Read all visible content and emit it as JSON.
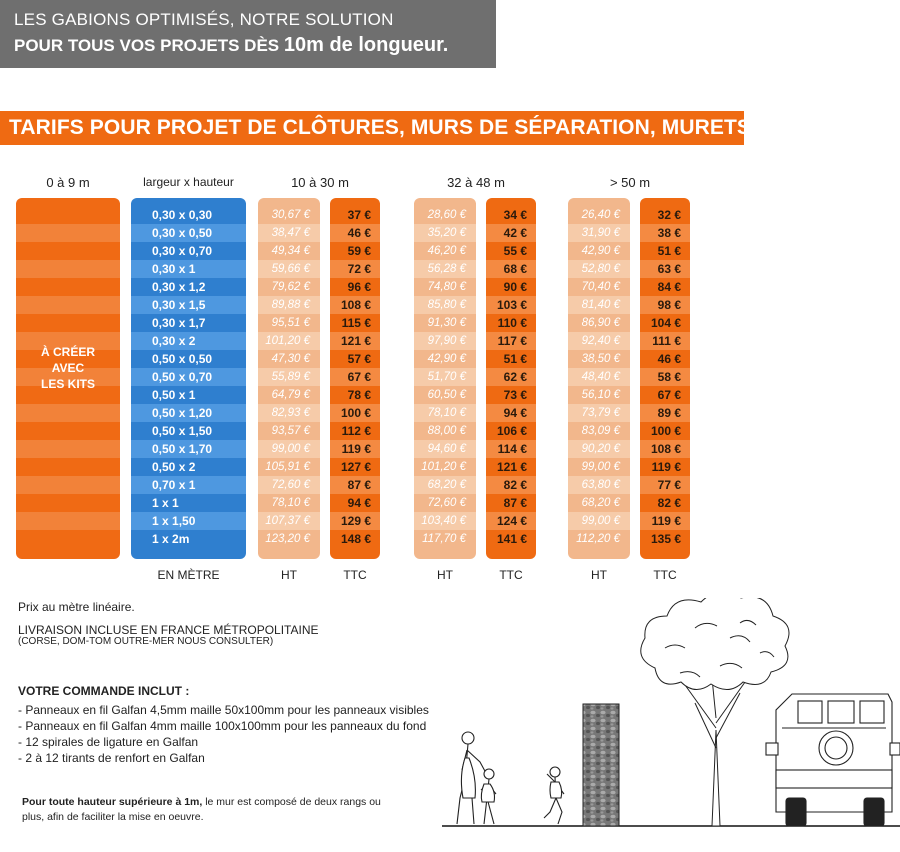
{
  "banner": {
    "line1": "LES GABIONS OPTIMISÉS, NOTRE SOLUTION",
    "line2_prefix": "POUR TOUS VOS PROJETS DÈS",
    "line2_big": "10m de longueur."
  },
  "ribbon_title": "TARIFS POUR PROJET DE CLÔTURES, MURS DE SÉPARATION, MURETS...",
  "table": {
    "header_kits": "0 à 9 m",
    "header_dims": "largeur x hauteur",
    "kits_label": [
      "À CRÉER",
      "AVEC",
      "LES KITS"
    ],
    "dims_footer": "EN MÈTRE",
    "ht_label": "HT",
    "ttc_label": "TTC",
    "dimensions": [
      "0,30 x 0,30",
      "0,30 x 0,50",
      "0,30 x 0,70",
      "0,30 x 1",
      "0,30 x 1,2",
      "0,30 x 1,5",
      "0,30 x 1,7",
      "0,30 x 2",
      "0,50 x 0,50",
      "0,50 x 0,70",
      "0,50 x 1",
      "0,50 x 1,20",
      "0,50 x 1,50",
      "0,50 x 1,70",
      "0,50 x 2",
      "0,70 x 1",
      "1 x 1",
      "1 x 1,50",
      "1 x 2m"
    ],
    "groups": [
      {
        "range": "10 à 30 m",
        "ht": [
          "30,67 €",
          "38,47 €",
          "49,34 €",
          "59,66 €",
          "79,62 €",
          "89,88 €",
          "95,51 €",
          "101,20 €",
          "47,30 €",
          "55,89 €",
          "64,79 €",
          "82,93 €",
          "93,57 €",
          "99,00 €",
          "105,91 €",
          "72,60 €",
          "78,10 €",
          "107,37 €",
          "123,20 €"
        ],
        "ttc": [
          "37 €",
          "46 €",
          "59 €",
          "72 €",
          "96 €",
          "108 €",
          "115 €",
          "121 €",
          "57 €",
          "67 €",
          "78 €",
          "100 €",
          "112 €",
          "119 €",
          "127 €",
          "87 €",
          "94 €",
          "129 €",
          "148 €"
        ]
      },
      {
        "range": "32 à 48 m",
        "ht": [
          "28,60 €",
          "35,20 €",
          "46,20 €",
          "56,28 €",
          "74,80 €",
          "85,80 €",
          "91,30 €",
          "97,90 €",
          "42,90 €",
          "51,70 €",
          "60,50 €",
          "78,10 €",
          "88,00 €",
          "94,60 €",
          "101,20 €",
          "68,20 €",
          "72,60 €",
          "103,40 €",
          "117,70 €"
        ],
        "ttc": [
          "34 €",
          "42 €",
          "55 €",
          "68 €",
          "90 €",
          "103 €",
          "110 €",
          "117 €",
          "51 €",
          "62 €",
          "73 €",
          "94 €",
          "106 €",
          "114 €",
          "121 €",
          "82 €",
          "87 €",
          "124 €",
          "141 €"
        ]
      },
      {
        "range": "> 50 m",
        "ht": [
          "26,40 €",
          "31,90 €",
          "42,90 €",
          "52,80 €",
          "70,40 €",
          "81,40 €",
          "86,90 €",
          "92,40 €",
          "38,50 €",
          "48,40 €",
          "56,10 €",
          "73,79 €",
          "83,09 €",
          "90,20 €",
          "99,00 €",
          "63,80 €",
          "68,20 €",
          "99,00 €",
          "112,20 €"
        ],
        "ttc": [
          "32 €",
          "38 €",
          "51 €",
          "63 €",
          "84 €",
          "98 €",
          "104 €",
          "111 €",
          "46 €",
          "58 €",
          "67 €",
          "89 €",
          "100 €",
          "108 €",
          "119 €",
          "77 €",
          "82 €",
          "119 €",
          "135 €"
        ]
      }
    ]
  },
  "info": {
    "price_note": "Prix au mètre linéaire.",
    "delivery": "LIVRAISON INCLUSE EN FRANCE MÉTROPOLITAINE",
    "delivery_sub": "(CORSE, DOM-TOM OUTRE-MER NOUS CONSULTER)",
    "order_title": "VOTRE COMMANDE INCLUT :",
    "order_items": [
      "- Panneaux en fil Galfan 4,5mm maille 50x100mm pour les panneaux visibles",
      "- Panneaux en fil Galfan 4mm maille 100x100mm pour les panneaux du fond",
      "- 12 spirales de ligature en Galfan",
      "- 2 à 12 tirants de renfort en Galfan"
    ],
    "note_bold": "Pour toute hauteur supérieure à 1m,",
    "note_rest": " le mur est composé de deux rangs ou plus, afin de faciliter la mise en oeuvre."
  },
  "colors": {
    "orange": "#ef6a12",
    "blue": "#2f7fcf",
    "peach": "#f2b78c",
    "banner_gray": "#6f6f6f"
  }
}
